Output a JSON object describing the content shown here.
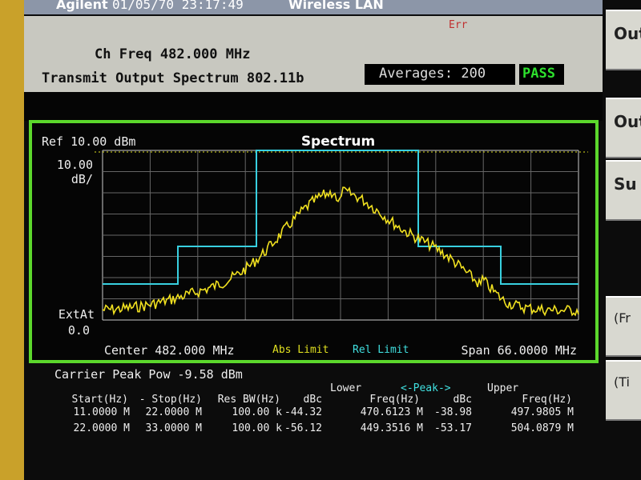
{
  "header": {
    "brand": "Agilent",
    "datetime": "01/05/70 23:17:49",
    "mode": "Wireless LAN",
    "err": "Err"
  },
  "info": {
    "ch_freq": "Ch Freq 482.000 MHz",
    "measurement": "Transmit Output Spectrum 802.11b",
    "averages": "Averages: 200",
    "status": "PASS"
  },
  "softkeys": [
    "Out",
    "Out",
    "Su",
    "(Fr",
    "(Ti"
  ],
  "plot": {
    "title": "Spectrum",
    "ref": "Ref 10.00 dBm",
    "scale": [
      "10.00",
      "dB/"
    ],
    "ext": "ExtAt",
    "ext_value": "0.0",
    "center": "Center 482.000 MHz",
    "abs_limit": "Abs Limit",
    "rel_limit": "Rel Limit",
    "span": "Span 66.0000 MHz"
  },
  "results": {
    "carrier": "Carrier Peak Pow -9.58 dBm",
    "groups": [
      "Lower",
      "<-Peak->",
      "Upper"
    ],
    "headers": [
      "Start(Hz)",
      "- Stop(Hz)",
      "Res BW(Hz)",
      "dBc",
      "Freq(Hz)",
      "dBc",
      "Freq(Hz)"
    ],
    "rows": [
      [
        "11.0000 M",
        "22.0000 M",
        "100.00 k",
        "-44.32",
        "470.6123 M",
        "-38.98",
        "497.9805 M"
      ],
      [
        "22.0000 M",
        "33.0000 M",
        "100.00 k",
        "-56.12",
        "449.3516 M",
        "-53.17",
        "504.0879 M"
      ]
    ]
  }
}
